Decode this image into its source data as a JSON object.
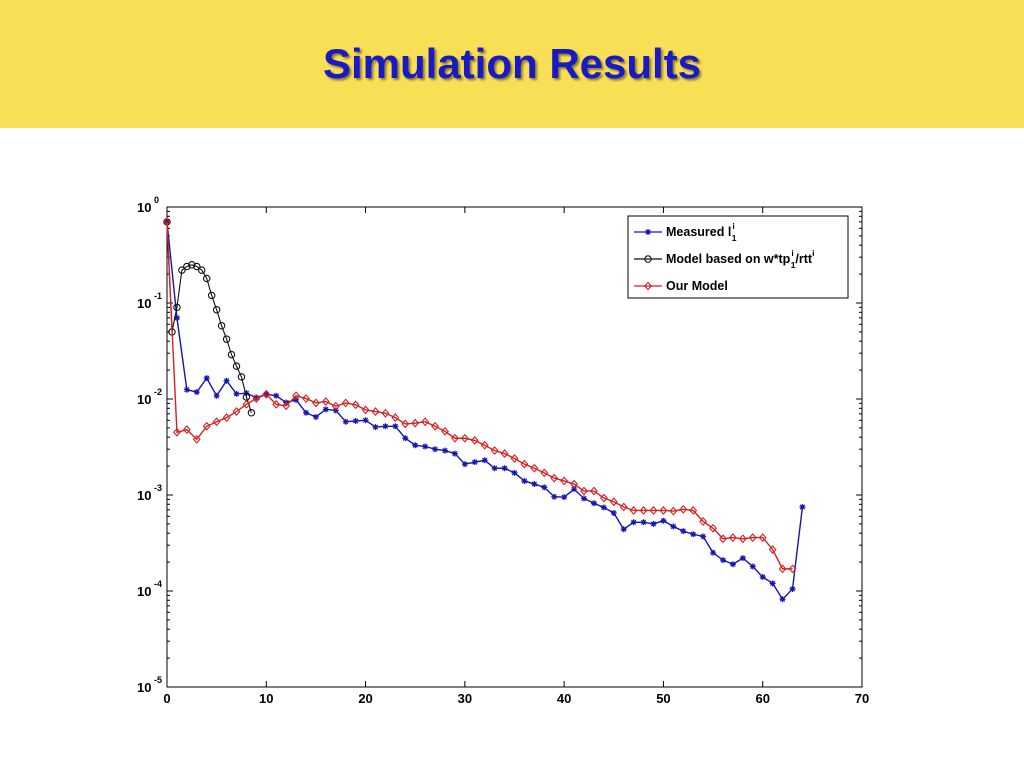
{
  "slide": {
    "title": "Simulation Results"
  },
  "chart_data": {
    "type": "line",
    "title": "",
    "xlabel": "",
    "ylabel": "",
    "xlim": [
      0,
      70
    ],
    "ylim": [
      1e-05,
      1
    ],
    "yscale": "log",
    "grid": false,
    "legend_position": "top-right",
    "x_ticks": [
      0,
      10,
      20,
      30,
      40,
      50,
      60,
      70
    ],
    "y_ticks": [
      {
        "value": 1,
        "base": "10",
        "exp": "0"
      },
      {
        "value": 0.1,
        "base": "10",
        "exp": "-1"
      },
      {
        "value": 0.01,
        "base": "10",
        "exp": "-2"
      },
      {
        "value": 0.001,
        "base": "10",
        "exp": "-3"
      },
      {
        "value": 0.0001,
        "base": "10",
        "exp": "-4"
      },
      {
        "value": 1e-05,
        "base": "10",
        "exp": "-5"
      }
    ],
    "series": [
      {
        "name": "Measured l_1^i",
        "legend": {
          "main": "Measured l",
          "sup": "i",
          "sub": "1",
          "rest": ""
        },
        "color": "#1515b0",
        "marker": "star",
        "x": [
          0,
          1,
          2,
          3,
          4,
          5,
          6,
          7,
          8,
          9,
          10,
          11,
          12,
          13,
          14,
          15,
          16,
          17,
          18,
          19,
          20,
          21,
          22,
          23,
          24,
          25,
          26,
          27,
          28,
          29,
          30,
          31,
          32,
          33,
          34,
          35,
          36,
          37,
          38,
          39,
          40,
          41,
          42,
          43,
          44,
          45,
          46,
          47,
          48,
          49,
          50,
          51,
          52,
          53,
          54,
          55,
          56,
          57,
          58,
          59,
          60,
          61,
          62,
          63,
          64
        ],
        "y": [
          0.7,
          0.07,
          0.0125,
          0.0118,
          0.0165,
          0.0108,
          0.0155,
          0.0113,
          0.0115,
          0.0103,
          0.0112,
          0.0108,
          0.0092,
          0.0098,
          0.0072,
          0.0065,
          0.0078,
          0.0076,
          0.0058,
          0.0059,
          0.006,
          0.0051,
          0.0052,
          0.0052,
          0.0039,
          0.0033,
          0.0032,
          0.003,
          0.0029,
          0.0027,
          0.0021,
          0.0022,
          0.0023,
          0.0019,
          0.0019,
          0.0017,
          0.0014,
          0.0013,
          0.0012,
          0.00096,
          0.00095,
          0.00115,
          0.00092,
          0.00082,
          0.00074,
          0.00065,
          0.00044,
          0.00052,
          0.00052,
          0.0005,
          0.00054,
          0.00047,
          0.00042,
          0.00039,
          0.00037,
          0.00025,
          0.00021,
          0.00019,
          0.00022,
          0.00018,
          0.00014,
          0.00012,
          8.2e-05,
          0.000105,
          0.00075
        ]
      },
      {
        "name": "Model based on w*tp_1^i/rtt^i",
        "legend": {
          "main": "Model based on w*tp",
          "sup": "i",
          "sub": "1",
          "rest": "/rtt",
          "rest_sup": "i"
        },
        "color": "#111111",
        "marker": "circle",
        "x": [
          0,
          0.5,
          1,
          1.5,
          2,
          2.5,
          3,
          3.5,
          4,
          4.5,
          5,
          5.5,
          6,
          6.5,
          7,
          7.5,
          8,
          8.5
        ],
        "y": [
          0.7,
          0.05,
          0.09,
          0.22,
          0.24,
          0.25,
          0.24,
          0.22,
          0.18,
          0.12,
          0.085,
          0.058,
          0.042,
          0.029,
          0.022,
          0.017,
          0.0105,
          0.0072
        ]
      },
      {
        "name": "Our Model",
        "legend": {
          "main": "Our Model",
          "sup": "",
          "sub": "",
          "rest": ""
        },
        "color": "#d42020",
        "marker": "diamond",
        "x": [
          0,
          1,
          2,
          3,
          4,
          5,
          6,
          7,
          8,
          9,
          10,
          11,
          12,
          13,
          14,
          15,
          16,
          17,
          18,
          19,
          20,
          21,
          22,
          23,
          24,
          25,
          26,
          27,
          28,
          29,
          30,
          31,
          32,
          33,
          34,
          35,
          36,
          37,
          38,
          39,
          40,
          41,
          42,
          43,
          44,
          45,
          46,
          47,
          48,
          49,
          50,
          51,
          52,
          53,
          54,
          55,
          56,
          57,
          58,
          59,
          60,
          61,
          62,
          63
        ],
        "y": [
          0.7,
          0.0045,
          0.0048,
          0.0038,
          0.0052,
          0.0058,
          0.0064,
          0.0074,
          0.0088,
          0.0101,
          0.0112,
          0.0088,
          0.0085,
          0.0108,
          0.0101,
          0.0091,
          0.0094,
          0.0084,
          0.0091,
          0.0087,
          0.0077,
          0.0074,
          0.0071,
          0.0064,
          0.0055,
          0.0056,
          0.0058,
          0.0052,
          0.0046,
          0.0039,
          0.0039,
          0.0037,
          0.0033,
          0.0029,
          0.0027,
          0.0024,
          0.0021,
          0.0019,
          0.0017,
          0.0015,
          0.0014,
          0.0013,
          0.0011,
          0.0011,
          0.00093,
          0.00085,
          0.00075,
          0.00069,
          0.00069,
          0.00069,
          0.00069,
          0.00068,
          0.00071,
          0.00069,
          0.00053,
          0.00045,
          0.00035,
          0.00036,
          0.00035,
          0.00036,
          0.00036,
          0.00027,
          0.00017,
          0.00017
        ]
      }
    ]
  }
}
